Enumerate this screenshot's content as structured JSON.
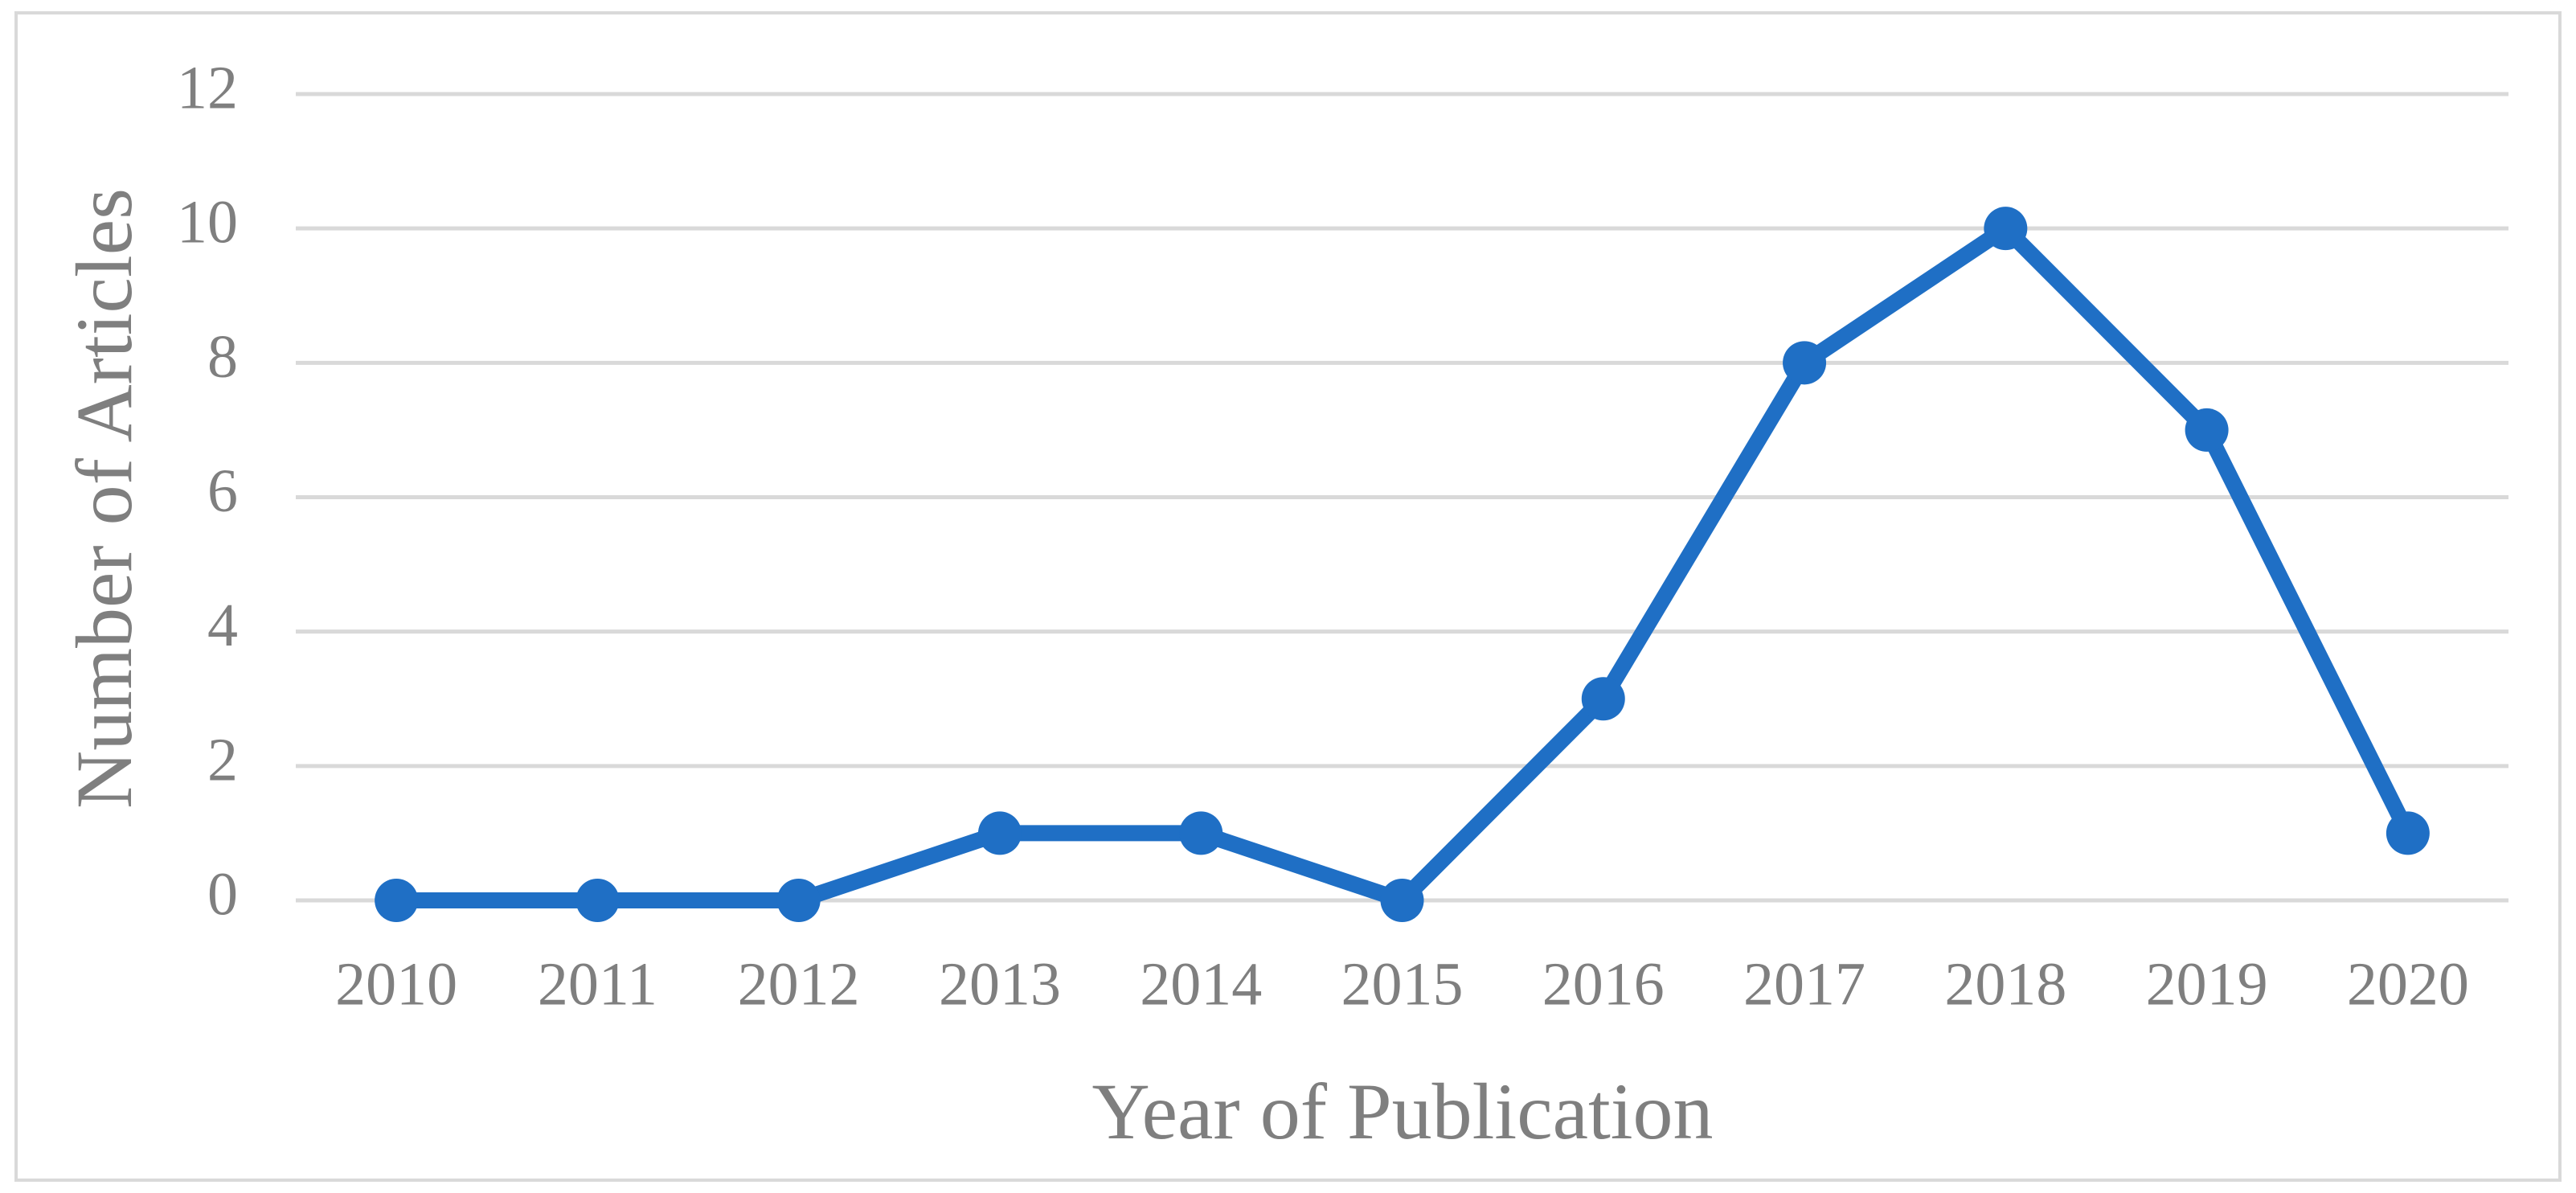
{
  "chart_data": {
    "type": "line",
    "x_label": "Year of Publication",
    "y_label": "Number of Articles",
    "categories": [
      "2010",
      "2011",
      "2012",
      "2013",
      "2014",
      "2015",
      "2016",
      "2017",
      "2018",
      "2019",
      "2020"
    ],
    "series": [
      {
        "color": "#1f6fc5",
        "values": [
          0,
          0,
          0,
          1,
          1,
          0,
          3,
          8,
          10,
          7,
          1
        ]
      }
    ],
    "ylim": [
      0,
      12
    ],
    "yticks": [
      0,
      2,
      4,
      6,
      8,
      10,
      12
    ],
    "grid": true
  }
}
